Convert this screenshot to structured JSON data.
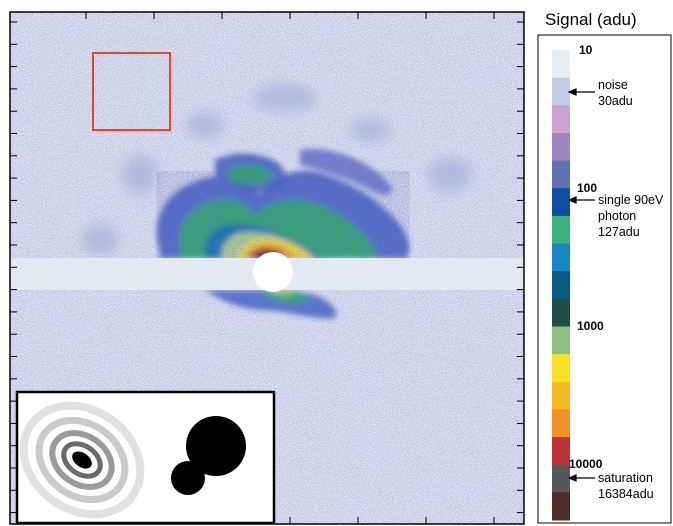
{
  "colorbar": {
    "title": "Signal (adu)",
    "ticks": [
      "10",
      "100",
      "1000",
      "10000"
    ],
    "annotations": {
      "noise": [
        "noise",
        "30adu"
      ],
      "photon": [
        "single 90eV",
        "photon",
        "127adu"
      ],
      "saturation": [
        "saturation",
        "16384adu"
      ]
    },
    "colors": [
      "#e6eef2",
      "#c3cde6",
      "#c9a4d0",
      "#9c88c0",
      "#5e6fb2",
      "#0b4f9e",
      "#3bb27f",
      "#1687c6",
      "#0b5a82",
      "#1f4f44",
      "#8fbf83",
      "#f9e223",
      "#f5bc22",
      "#f2912a",
      "#b8333a",
      "#565656",
      "#4e2b25"
    ]
  },
  "inset": {
    "left_panel": "diffraction-pattern",
    "right_panel": "two-sphere-object"
  },
  "main_image": {
    "background_color": "#e2e9f1",
    "roi_box_color": "#e8432b"
  }
}
